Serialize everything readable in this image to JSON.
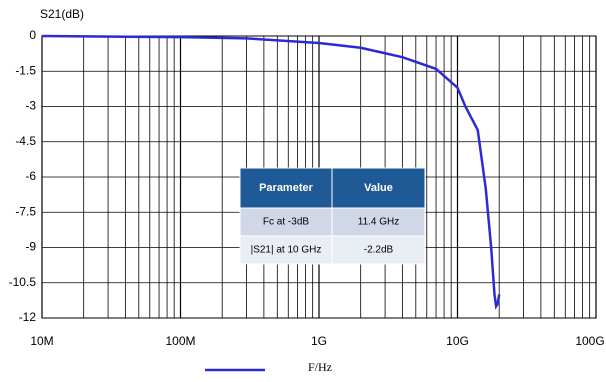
{
  "chart_data": {
    "type": "line",
    "y_label": "S21(dB)",
    "x_label": "F/Hz",
    "x": [
      10000000,
      100000000,
      300000000,
      1000000000,
      2000000000,
      4000000000,
      7000000000,
      10000000000,
      11400000000,
      14000000000,
      16000000000,
      17500000000,
      18500000000,
      19000000000,
      19500000000,
      20000000000
    ],
    "series": [
      {
        "color": "#2b2bd6",
        "values": [
          0,
          -0.05,
          -0.1,
          -0.3,
          -0.5,
          -0.9,
          -1.4,
          -2.2,
          -3,
          -4,
          -6.5,
          -9,
          -11,
          -11.5,
          -11.4,
          -11
        ]
      }
    ],
    "xlim": [
      10000000,
      100000000000
    ],
    "log_x": true,
    "xticks": [
      {
        "value": 10000000,
        "label": "10M"
      },
      {
        "value": 100000000,
        "label": "100M"
      },
      {
        "value": 1000000000,
        "label": "1G"
      },
      {
        "value": 10000000000,
        "label": "10G"
      },
      {
        "value": 100000000000,
        "label": "100G"
      }
    ],
    "ylim": [
      -12,
      0
    ],
    "yticks": [
      0,
      -1.5,
      -3,
      -4.5,
      -6,
      -7.5,
      -9,
      -10.5,
      -12
    ],
    "grid": true,
    "minor_grid": true,
    "legend": true,
    "table": {
      "header": [
        "Parameter",
        "Value"
      ],
      "rows": [
        [
          "Fc at -3dB",
          "11.4 GHz"
        ],
        [
          "|S21| at 10 GHz",
          "-2.2dB"
        ]
      ]
    }
  }
}
